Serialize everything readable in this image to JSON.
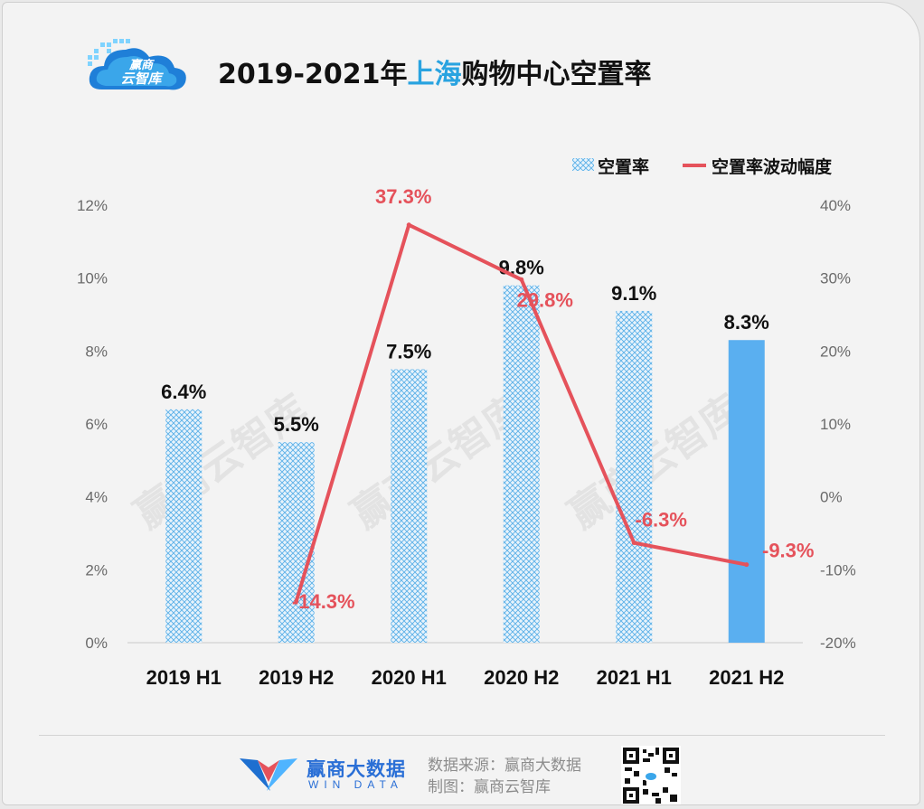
{
  "logo": {
    "line1": "赢商",
    "line2": "云智库"
  },
  "title": {
    "prefix": "2019-2021年",
    "highlight": "上海",
    "suffix": "购物中心空置率"
  },
  "watermark": "赢商云智库",
  "footer": {
    "brand_name": "赢商大数据",
    "brand_sub": "WIN DATA",
    "source_line": "数据来源：赢商大数据",
    "maker_line": "制图：赢商云智库"
  },
  "colors": {
    "bar_pattern": "#5ab0e8",
    "bar_solid": "#5aaff0",
    "line": "#e5525b",
    "title_highlight": "#29a3e0"
  },
  "chart_data": {
    "type": "bar",
    "categories": [
      "2019 H1",
      "2019 H2",
      "2020 H1",
      "2020 H2",
      "2021 H1",
      "2021 H2"
    ],
    "series": [
      {
        "name": "空置率",
        "type": "bar",
        "axis": "left",
        "values": [
          6.4,
          5.5,
          7.5,
          9.8,
          9.1,
          8.3
        ],
        "labels": [
          "6.4%",
          "5.5%",
          "7.5%",
          "9.8%",
          "9.1%",
          "8.3%"
        ]
      },
      {
        "name": "空置率波动幅度",
        "type": "line",
        "axis": "right",
        "values": [
          null,
          -14.3,
          37.3,
          29.8,
          -6.3,
          -9.3
        ],
        "labels": [
          "",
          "-14.3%",
          "37.3%",
          "29.8%",
          "-6.3%",
          "-9.3%"
        ]
      }
    ],
    "y_left": {
      "min": 0,
      "max": 12,
      "ticks": [
        "0%",
        "2%",
        "4%",
        "6%",
        "8%",
        "10%",
        "12%"
      ]
    },
    "y_right": {
      "min": -20,
      "max": 40,
      "ticks": [
        "-20%",
        "-10%",
        "0%",
        "10%",
        "20%",
        "30%",
        "40%"
      ]
    },
    "legend": [
      "空置率",
      "空置率波动幅度"
    ],
    "legend_position": "top-right"
  }
}
